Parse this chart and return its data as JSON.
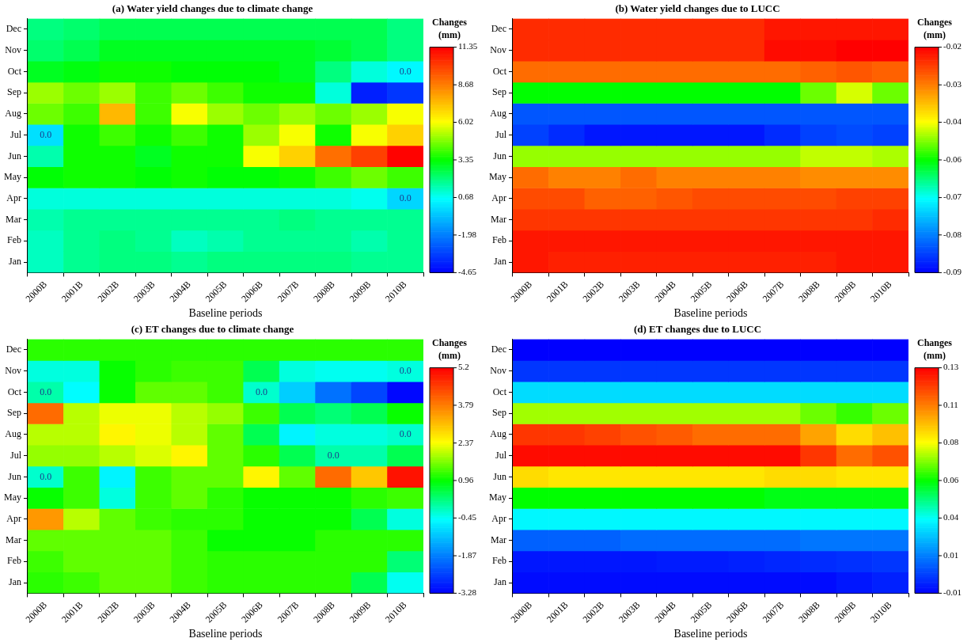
{
  "chart_data": [
    {
      "type": "heatmap",
      "title": "(a) Water yield changes due to climate change",
      "xlabel": "Baseline periods",
      "clabel": "Changes (mm)",
      "categories": [
        "2000B",
        "2001B",
        "2002B",
        "2003B",
        "2004B",
        "2005B",
        "2006B",
        "2007B",
        "2008B",
        "2009B",
        "2010B"
      ],
      "y_categories": [
        "Dec",
        "Nov",
        "Oct",
        "Sep",
        "Aug",
        "Jul",
        "Jun",
        "May",
        "Apr",
        "Mar",
        "Feb",
        "Jan"
      ],
      "cells": [
        [
          2,
          2.2,
          2.5,
          2.5,
          2.5,
          2.5,
          2.5,
          2.5,
          2.5,
          2.5,
          2
        ],
        [
          2.2,
          2.5,
          3,
          3,
          3,
          3,
          3,
          3,
          2.8,
          2.5,
          2
        ],
        [
          3,
          3.2,
          3.5,
          3.5,
          3.3,
          3.3,
          3.3,
          3,
          2,
          1,
          0.5
        ],
        [
          5,
          4.5,
          5,
          4,
          4.5,
          4,
          3.5,
          3.5,
          1,
          -4,
          -3.5
        ],
        [
          4.5,
          4,
          7.5,
          4,
          6,
          5,
          4.5,
          5,
          4.5,
          5,
          6
        ],
        [
          0,
          3.5,
          4,
          3.5,
          4,
          3.5,
          5,
          6,
          3.5,
          6,
          7
        ],
        [
          1.5,
          3.5,
          3.5,
          3,
          3.5,
          3.5,
          6,
          7,
          9,
          10,
          11.3
        ],
        [
          3.3,
          3.5,
          3.5,
          3.3,
          3.5,
          3.3,
          3.3,
          3.5,
          4,
          4.5,
          4
        ],
        [
          1,
          1,
          1,
          1,
          1,
          1,
          1,
          1,
          1,
          0.8,
          -0.2
        ],
        [
          1.5,
          1.8,
          1.8,
          1.8,
          1.8,
          1.8,
          1.8,
          2,
          1.8,
          1.8,
          1.8
        ],
        [
          1.3,
          1.8,
          2,
          1.8,
          1.3,
          1.5,
          1.8,
          1.8,
          1.8,
          1.5,
          1.8
        ],
        [
          1.3,
          1.8,
          2,
          2,
          1.8,
          2,
          2,
          2,
          2,
          1.8,
          1.8
        ]
      ],
      "clim": [
        -4.65,
        11.35
      ],
      "cticks": [
        11.35,
        8.68,
        6.02,
        3.35,
        0.68,
        -1.98,
        -4.65
      ],
      "annotations": [
        "0.0",
        "0.0",
        "0.0"
      ]
    },
    {
      "type": "heatmap",
      "title": "(b) Water yield changes due to LUCC",
      "xlabel": "Baseline periods",
      "clabel": "Changes (mm)",
      "categories": [
        "2000B",
        "2001B",
        "2002B",
        "2003B",
        "2004B",
        "2005B",
        "2006B",
        "2007B",
        "2008B",
        "2009B",
        "2010B"
      ],
      "y_categories": [
        "Dec",
        "Nov",
        "Oct",
        "Sep",
        "Aug",
        "Jul",
        "Jun",
        "May",
        "Apr",
        "Mar",
        "Feb",
        "Jan"
      ],
      "cells": [
        [
          -0.024,
          -0.024,
          -0.024,
          -0.024,
          -0.024,
          -0.024,
          -0.024,
          -0.022,
          -0.022,
          -0.022,
          -0.022
        ],
        [
          -0.024,
          -0.024,
          -0.024,
          -0.024,
          -0.024,
          -0.024,
          -0.024,
          -0.021,
          -0.021,
          -0.02,
          -0.02
        ],
        [
          -0.03,
          -0.03,
          -0.03,
          -0.03,
          -0.03,
          -0.03,
          -0.03,
          -0.03,
          -0.029,
          -0.028,
          -0.029
        ],
        [
          -0.055,
          -0.055,
          -0.055,
          -0.055,
          -0.055,
          -0.055,
          -0.055,
          -0.055,
          -0.05,
          -0.045,
          -0.05
        ],
        [
          -0.082,
          -0.082,
          -0.082,
          -0.082,
          -0.082,
          -0.082,
          -0.082,
          -0.082,
          -0.082,
          -0.082,
          -0.082
        ],
        [
          -0.084,
          -0.086,
          -0.088,
          -0.088,
          -0.088,
          -0.088,
          -0.088,
          -0.086,
          -0.084,
          -0.083,
          -0.084
        ],
        [
          -0.048,
          -0.048,
          -0.048,
          -0.048,
          -0.048,
          -0.048,
          -0.048,
          -0.048,
          -0.046,
          -0.046,
          -0.047
        ],
        [
          -0.03,
          -0.032,
          -0.032,
          -0.03,
          -0.032,
          -0.032,
          -0.032,
          -0.032,
          -0.033,
          -0.033,
          -0.033
        ],
        [
          -0.027,
          -0.027,
          -0.029,
          -0.029,
          -0.028,
          -0.027,
          -0.027,
          -0.027,
          -0.027,
          -0.026,
          -0.026
        ],
        [
          -0.025,
          -0.025,
          -0.025,
          -0.025,
          -0.025,
          -0.025,
          -0.025,
          -0.025,
          -0.025,
          -0.025,
          -0.024
        ],
        [
          -0.022,
          -0.022,
          -0.022,
          -0.022,
          -0.022,
          -0.022,
          -0.022,
          -0.022,
          -0.022,
          -0.022,
          -0.022
        ],
        [
          -0.022,
          -0.023,
          -0.023,
          -0.023,
          -0.023,
          -0.023,
          -0.023,
          -0.023,
          -0.023,
          -0.022,
          -0.022
        ]
      ],
      "clim": [
        -0.09,
        -0.02
      ],
      "cticks": [
        {
          "value": -0.02,
          "label": "-0.02"
        },
        {
          "value": -0.0317,
          "label": "-0.03"
        },
        {
          "value": -0.0433,
          "label": "-0.04"
        },
        {
          "value": -0.055,
          "label": "-0.06"
        },
        {
          "value": -0.0667,
          "label": "-0.07"
        },
        {
          "value": -0.0783,
          "label": "-0.08"
        },
        {
          "value": -0.09,
          "label": "-0.09"
        }
      ]
    },
    {
      "type": "heatmap",
      "title": "(c) ET changes due to climate change",
      "xlabel": "Baseline periods",
      "clabel": "Changes (mm)",
      "categories": [
        "2000B",
        "2001B",
        "2002B",
        "2003B",
        "2004B",
        "2005B",
        "2006B",
        "2007B",
        "2008B",
        "2009B",
        "2010B"
      ],
      "y_categories": [
        "Dec",
        "Nov",
        "Oct",
        "Sep",
        "Aug",
        "Jul",
        "Jun",
        "May",
        "Apr",
        "Mar",
        "Feb",
        "Jan"
      ],
      "cells": [
        [
          1.2,
          1.2,
          1.2,
          1.2,
          1.2,
          1.2,
          1.2,
          1.2,
          1.2,
          1.2,
          1.2
        ],
        [
          -0.3,
          -0.3,
          1,
          1.2,
          1.3,
          1.3,
          0.5,
          -0.3,
          -0.4,
          -0.4,
          -0.3
        ],
        [
          0,
          -0.5,
          1,
          1.5,
          1.5,
          1.3,
          -0.2,
          -1,
          -2,
          -2.5,
          -3.2
        ],
        [
          4,
          2,
          2.3,
          2.3,
          2,
          1.8,
          1.3,
          0.5,
          0.3,
          0.5,
          1
        ],
        [
          2,
          2,
          2.5,
          2.3,
          2,
          1.5,
          0.5,
          -0.6,
          -0.3,
          -0.3,
          -0.2
        ],
        [
          1.8,
          1.8,
          2,
          2.2,
          2.5,
          1.5,
          1.2,
          0.5,
          0,
          0,
          0.5
        ],
        [
          -0.2,
          1.3,
          -0.6,
          1.3,
          1.5,
          1.5,
          2.5,
          1.5,
          4,
          3,
          5
        ],
        [
          1,
          1.3,
          -0.3,
          1.3,
          1.5,
          1.2,
          1,
          1,
          1,
          1.2,
          1.3
        ],
        [
          3.5,
          2,
          1.5,
          1.3,
          1.2,
          1.2,
          1,
          1,
          1,
          0.5,
          -0.3
        ],
        [
          1.5,
          1.5,
          1.5,
          1.5,
          1.3,
          1,
          1,
          1,
          1.2,
          1.2,
          1.2
        ],
        [
          1.3,
          1.5,
          1.5,
          1.5,
          1.3,
          1.2,
          1.2,
          1.2,
          1.2,
          1.2,
          0.3
        ],
        [
          1.2,
          1.3,
          1.5,
          1.5,
          1.3,
          1.2,
          1.2,
          1.2,
          1.2,
          0.5,
          -0.4
        ]
      ],
      "clim": [
        -3.28,
        5.2
      ],
      "cticks": [
        5.2,
        3.79,
        2.37,
        0.96,
        -0.45,
        -1.87,
        -3.28
      ],
      "annotations": [
        "0.0",
        "0.0",
        "0.0",
        "0.0",
        "0.0",
        "0.0"
      ]
    },
    {
      "type": "heatmap",
      "title": "(d) ET changes due to LUCC",
      "xlabel": "Baseline periods",
      "clabel": "Changes (mm)",
      "categories": [
        "2000B",
        "2001B",
        "2002B",
        "2003B",
        "2004B",
        "2005B",
        "2006B",
        "2007B",
        "2008B",
        "2009B",
        "2010B"
      ],
      "y_categories": [
        "Dec",
        "Nov",
        "Oct",
        "Sep",
        "Aug",
        "Jul",
        "Jun",
        "May",
        "Apr",
        "Mar",
        "Feb",
        "Jan"
      ],
      "cells": [
        [
          -0.01,
          -0.01,
          -0.01,
          -0.01,
          -0.01,
          -0.01,
          -0.01,
          -0.01,
          -0.01,
          -0.01,
          -0.01
        ],
        [
          0,
          0,
          0,
          0,
          0,
          0,
          0,
          0,
          0,
          0,
          0
        ],
        [
          0.03,
          0.03,
          0.03,
          0.03,
          0.03,
          0.03,
          0.03,
          0.03,
          0.03,
          0.03,
          0.03
        ],
        [
          0.075,
          0.075,
          0.075,
          0.075,
          0.075,
          0.075,
          0.075,
          0.075,
          0.07,
          0.065,
          0.07
        ],
        [
          0.12,
          0.12,
          0.118,
          0.115,
          0.113,
          0.11,
          0.11,
          0.11,
          0.1,
          0.09,
          0.095
        ],
        [
          0.128,
          0.128,
          0.128,
          0.128,
          0.128,
          0.128,
          0.128,
          0.128,
          0.12,
          0.11,
          0.115
        ],
        [
          0.09,
          0.088,
          0.088,
          0.088,
          0.088,
          0.088,
          0.088,
          0.09,
          0.09,
          0.088,
          0.088
        ],
        [
          0.06,
          0.06,
          0.06,
          0.06,
          0.06,
          0.06,
          0.06,
          0.058,
          0.058,
          0.058,
          0.058
        ],
        [
          0.035,
          0.035,
          0.035,
          0.035,
          0.035,
          0.035,
          0.035,
          0.035,
          0.035,
          0.035,
          0.035
        ],
        [
          0.008,
          0.008,
          0.008,
          0.01,
          0.01,
          0.01,
          0.01,
          0.01,
          0.012,
          0.012,
          0.012
        ],
        [
          -0.006,
          -0.006,
          -0.006,
          -0.006,
          -0.005,
          -0.005,
          -0.004,
          -0.003,
          -0.002,
          -0.001,
          0
        ],
        [
          -0.008,
          -0.008,
          -0.008,
          -0.008,
          -0.008,
          -0.008,
          -0.008,
          -0.008,
          -0.008,
          -0.006,
          -0.004
        ]
      ],
      "clim": [
        -0.01,
        0.13
      ],
      "cticks": [
        {
          "value": 0.13,
          "label": "0.13"
        },
        {
          "value": 0.1067,
          "label": "0.11"
        },
        {
          "value": 0.0833,
          "label": "0.08"
        },
        {
          "value": 0.06,
          "label": "0.06"
        },
        {
          "value": 0.0367,
          "label": "0.04"
        },
        {
          "value": 0.0133,
          "label": "0.01"
        },
        {
          "value": -0.01,
          "label": "-0.01"
        }
      ]
    }
  ]
}
